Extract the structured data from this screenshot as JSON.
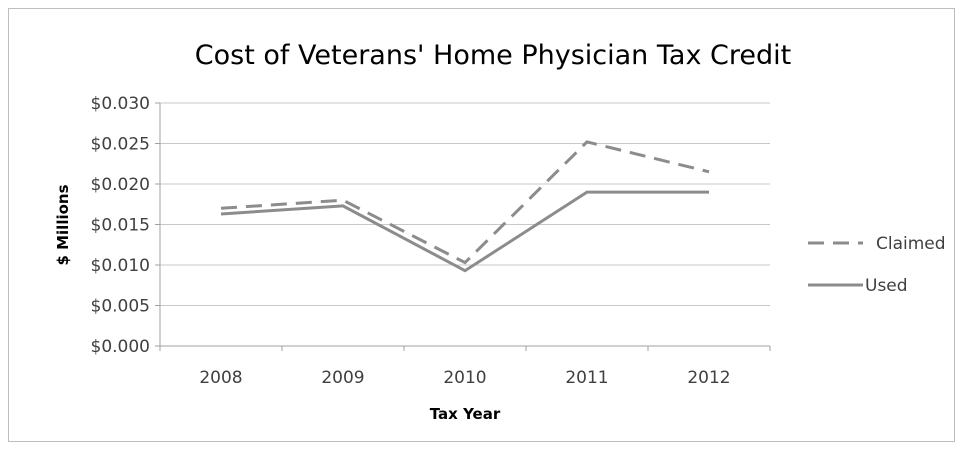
{
  "chart_data": {
    "type": "line",
    "title": "Cost of Veterans' Home Physician Tax Credit",
    "xlabel": "Tax Year",
    "ylabel": "$ Millions",
    "categories": [
      "2008",
      "2009",
      "2010",
      "2011",
      "2012"
    ],
    "y_tick_labels": [
      "$0.000",
      "$0.005",
      "$0.010",
      "$0.015",
      "$0.020",
      "$0.025",
      "$0.030"
    ],
    "y_ticks": [
      0,
      0.005,
      0.01,
      0.015,
      0.02,
      0.025,
      0.03
    ],
    "ylim": [
      0,
      0.03
    ],
    "grid": true,
    "legend_position": "right",
    "series": [
      {
        "name": "Claimed",
        "values": [
          0.017,
          0.018,
          0.0103,
          0.0252,
          0.0215
        ],
        "style": "dashed",
        "color": "#8c8c8c"
      },
      {
        "name": "Used",
        "values": [
          0.0163,
          0.0173,
          0.0093,
          0.019,
          0.019
        ],
        "style": "solid",
        "color": "#8c8c8c"
      }
    ]
  }
}
